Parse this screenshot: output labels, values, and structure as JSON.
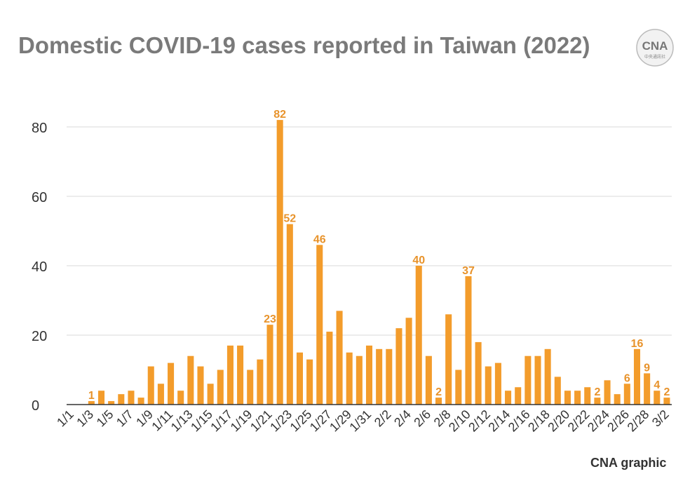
{
  "title": "Domestic COVID-19 cases reported in Taiwan (2022)",
  "credit": "CNA graphic",
  "logo": {
    "text": "CNA",
    "subtext": "中央通訊社"
  },
  "colors": {
    "bar": "#f39c2b",
    "label": "#e8932b",
    "grid": "#d9d9d9",
    "axis": "#333333",
    "text": "#333333",
    "title": "#7a7a7a"
  },
  "chart_data": {
    "type": "bar",
    "title": "Domestic COVID-19 cases reported in Taiwan (2022)",
    "xlabel": "",
    "ylabel": "",
    "ylim": [
      0,
      80
    ],
    "yticks": [
      0,
      20,
      40,
      60,
      80
    ],
    "grid": true,
    "legend": "none",
    "categories": [
      "1/1",
      "1/2",
      "1/3",
      "1/4",
      "1/5",
      "1/6",
      "1/7",
      "1/8",
      "1/9",
      "1/10",
      "1/11",
      "1/12",
      "1/13",
      "1/14",
      "1/15",
      "1/16",
      "1/17",
      "1/18",
      "1/19",
      "1/20",
      "1/21",
      "1/22",
      "1/23",
      "1/24",
      "1/25",
      "1/26",
      "1/27",
      "1/28",
      "1/29",
      "1/30",
      "1/31",
      "2/1",
      "2/2",
      "2/3",
      "2/4",
      "2/5",
      "2/6",
      "2/7",
      "2/8",
      "2/9",
      "2/10",
      "2/11",
      "2/12",
      "2/13",
      "2/14",
      "2/15",
      "2/16",
      "2/17",
      "2/18",
      "2/19",
      "2/20",
      "2/21",
      "2/22",
      "2/23",
      "2/24",
      "2/25",
      "2/26",
      "2/27",
      "2/28",
      "3/1",
      "3/2"
    ],
    "tick_labels": [
      "1/1",
      "1/3",
      "1/5",
      "1/7",
      "1/9",
      "1/11",
      "1/13",
      "1/15",
      "1/17",
      "1/19",
      "1/21",
      "1/23",
      "1/25",
      "1/27",
      "1/29",
      "1/31",
      "2/2",
      "2/4",
      "2/6",
      "2/8",
      "2/10",
      "2/12",
      "2/14",
      "2/16",
      "2/18",
      "2/20",
      "2/22",
      "2/24",
      "2/26",
      "2/28",
      "3/2"
    ],
    "values": [
      0,
      0,
      1,
      4,
      1,
      3,
      4,
      2,
      11,
      6,
      12,
      4,
      14,
      11,
      6,
      10,
      17,
      17,
      10,
      13,
      23,
      82,
      52,
      15,
      13,
      46,
      21,
      27,
      15,
      14,
      17,
      16,
      16,
      22,
      25,
      40,
      14,
      2,
      26,
      10,
      37,
      18,
      11,
      12,
      4,
      5,
      14,
      14,
      16,
      8,
      4,
      4,
      5,
      2,
      7,
      3,
      6,
      16,
      9,
      4,
      2
    ],
    "data_labels": [
      {
        "date": "1/3",
        "value": 1
      },
      {
        "date": "1/21",
        "value": 23
      },
      {
        "date": "1/22",
        "value": 82
      },
      {
        "date": "1/23",
        "value": 52
      },
      {
        "date": "1/26",
        "value": 46
      },
      {
        "date": "2/5",
        "value": 40
      },
      {
        "date": "2/7",
        "value": 2
      },
      {
        "date": "2/10",
        "value": 37
      },
      {
        "date": "2/23",
        "value": 2
      },
      {
        "date": "2/26",
        "value": 6
      },
      {
        "date": "2/27",
        "value": 16
      },
      {
        "date": "2/28",
        "value": 9
      },
      {
        "date": "3/1",
        "value": 4
      },
      {
        "date": "3/2",
        "value": 2
      }
    ]
  }
}
